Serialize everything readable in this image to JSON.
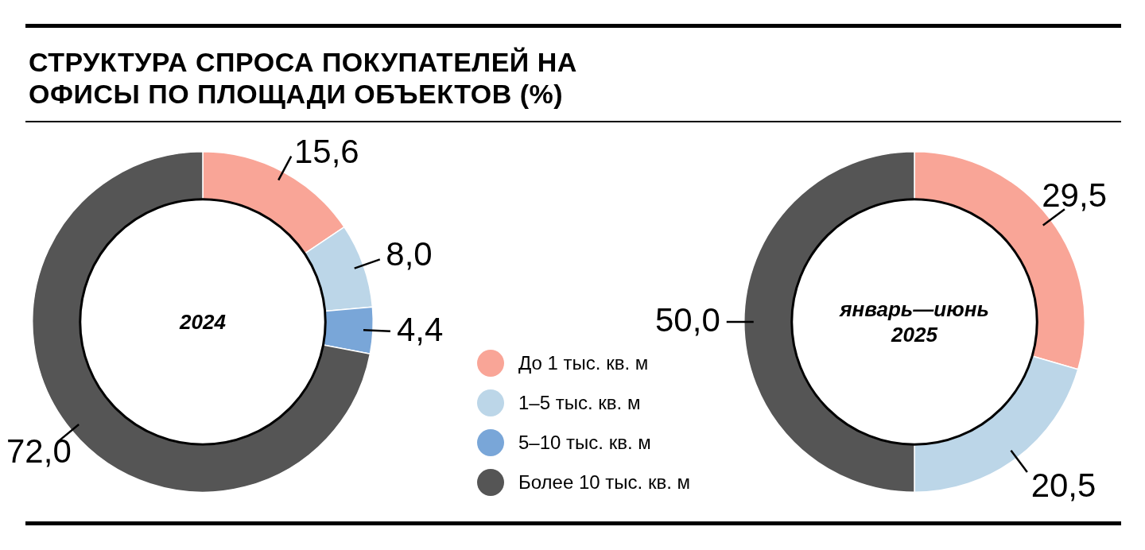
{
  "chart_data": [
    {
      "type": "donut",
      "title": "СТРУКТУРА СПРОСА ПОКУПАТЕЛЕЙ НА ОФИСЫ ПО ПЛОЩАДИ ОБЪЕКТОВ (%)",
      "subtitle": "2024",
      "categories": [
        "До 1 тыс. кв. м",
        "1–5 тыс. кв. м",
        "5–10 тыс. кв. м",
        "Более 10 тыс. кв. м"
      ],
      "values": [
        15.6,
        8.0,
        4.4,
        72.0
      ],
      "colors": [
        "#f9a597",
        "#bcd6e8",
        "#79a6d8",
        "#555555"
      ],
      "value_labels": [
        "15,6",
        "8,0",
        "4,4",
        "72,0"
      ],
      "legend": "right"
    },
    {
      "type": "donut",
      "subtitle": "январь—июнь 2025",
      "categories": [
        null,
        null,
        null,
        null
      ],
      "values": [
        29.5,
        20.5,
        0,
        50.0
      ],
      "colors": [
        "#f9a597",
        "#bcd6e8",
        "#79a6d8",
        "#555555"
      ],
      "value_labels": [
        "29,5",
        "20,5",
        null,
        "50,0"
      ]
    }
  ]
}
